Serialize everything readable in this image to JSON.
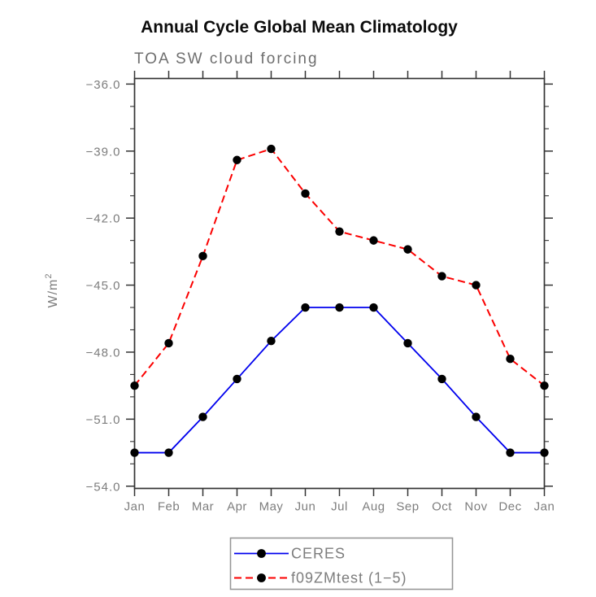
{
  "figure": {
    "title": "Annual Cycle Global Mean Climatology",
    "subtitle": "TOA SW cloud forcing"
  },
  "chart_data": {
    "type": "line",
    "title": "Annual Cycle Global Mean Climatology",
    "subtitle": "TOA SW cloud forcing",
    "xlabel": "",
    "ylabel": "W/m2",
    "ylabel_base": "W/m",
    "ylabel_exponent": "2",
    "categories": [
      "Jan",
      "Feb",
      "Mar",
      "Apr",
      "May",
      "Jun",
      "Jul",
      "Aug",
      "Sep",
      "Oct",
      "Nov",
      "Dec",
      "Jan"
    ],
    "ylim": [
      -54.1,
      -35.75
    ],
    "y_major_ticks": [
      -36,
      -39,
      -42,
      -45,
      -48,
      -51,
      -54
    ],
    "y_major_tick_labels": [
      "−36.0",
      "−39.0",
      "−42.0",
      "−45.0",
      "−48.0",
      "−51.0",
      "−54.0"
    ],
    "y_minor_tick_step": 1,
    "grid": false,
    "legend_position": "bottom-center",
    "axis_color": "#333333",
    "text_gray": "#7d7d7d",
    "marker_shape": "filled-circle",
    "series": [
      {
        "name": "CERES",
        "color": "#0000ee",
        "style": "solid",
        "marker_color": "#000000",
        "values": [
          -52.5,
          -52.5,
          -50.9,
          -49.2,
          -47.5,
          -46.0,
          -46.0,
          -46.0,
          -47.6,
          -49.2,
          -50.9,
          -52.5,
          -52.5
        ]
      },
      {
        "name": "f09ZMtest (1−5)",
        "color": "#fb0000",
        "style": "dashed",
        "marker_color": "#000000",
        "values": [
          -49.5,
          -47.6,
          -43.7,
          -39.4,
          -38.9,
          -40.9,
          -42.6,
          -43.0,
          -43.4,
          -44.6,
          -45.0,
          -48.3,
          -49.5
        ]
      }
    ]
  }
}
